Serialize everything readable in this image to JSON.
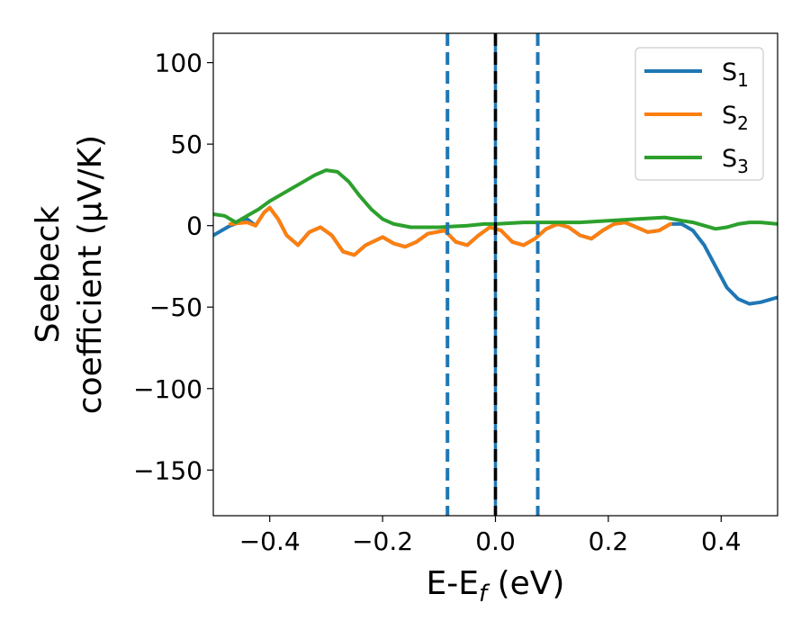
{
  "chart_data": {
    "type": "line",
    "xlabel_main": "E-E",
    "xlabel_sub": "f",
    "xlabel_unit": " (eV)",
    "ylabel_line1": "Seebeck",
    "ylabel_line2": "coefficient  (μV/K)",
    "xlim": [
      -0.5,
      0.5
    ],
    "ylim": [
      -178,
      118
    ],
    "x_ticks": [
      -0.4,
      -0.2,
      0.0,
      0.2,
      0.4
    ],
    "x_tick_labels": [
      "−0.4",
      "−0.2",
      "0.0",
      "0.2",
      "0.4"
    ],
    "y_ticks": [
      100,
      50,
      0,
      -50,
      -100,
      -150
    ],
    "y_tick_labels": [
      "100",
      "50",
      "0",
      "−50",
      "−100",
      "−150"
    ],
    "legend_position": "top-right",
    "vertical_lines": [
      {
        "x": -0.085,
        "style": "dashed",
        "color": "#1f77b4"
      },
      {
        "x": 0.075,
        "style": "dashed",
        "color": "#1f77b4"
      },
      {
        "x": 0.0,
        "style": "solid",
        "color": "#1f77b4"
      },
      {
        "x": 0.0,
        "style": "dashed",
        "color": "#000000"
      }
    ],
    "series": [
      {
        "name_main": "S",
        "name_sub": "1",
        "color": "#1f77b4",
        "points": [
          [
            -0.5,
            -6
          ],
          [
            -0.47,
            0
          ],
          [
            -0.44,
            4
          ],
          [
            -0.425,
            0
          ],
          [
            -0.41,
            8
          ],
          [
            -0.4,
            11
          ],
          [
            -0.385,
            4
          ],
          [
            -0.37,
            -6
          ],
          [
            -0.35,
            -12
          ],
          [
            -0.33,
            -4
          ],
          [
            -0.31,
            -1
          ],
          [
            -0.29,
            -6
          ],
          [
            -0.27,
            -16
          ],
          [
            -0.25,
            -18
          ],
          [
            -0.23,
            -12
          ],
          [
            -0.2,
            -7
          ],
          [
            -0.18,
            -11
          ],
          [
            -0.16,
            -13
          ],
          [
            -0.14,
            -10
          ],
          [
            -0.12,
            -5
          ],
          [
            -0.09,
            -3
          ],
          [
            -0.07,
            -10
          ],
          [
            -0.05,
            -12
          ],
          [
            -0.03,
            -6
          ],
          [
            -0.01,
            -1
          ],
          [
            0.01,
            -3
          ],
          [
            0.03,
            -10
          ],
          [
            0.05,
            -12
          ],
          [
            0.07,
            -8
          ],
          [
            0.09,
            -2
          ],
          [
            0.11,
            1
          ],
          [
            0.13,
            -1
          ],
          [
            0.15,
            -6
          ],
          [
            0.17,
            -8
          ],
          [
            0.19,
            -3
          ],
          [
            0.21,
            1
          ],
          [
            0.23,
            2
          ],
          [
            0.25,
            -1
          ],
          [
            0.27,
            -4
          ],
          [
            0.29,
            -3
          ],
          [
            0.31,
            1
          ],
          [
            0.33,
            1
          ],
          [
            0.35,
            -3
          ],
          [
            0.37,
            -12
          ],
          [
            0.39,
            -25
          ],
          [
            0.41,
            -38
          ],
          [
            0.43,
            -45
          ],
          [
            0.45,
            -48
          ],
          [
            0.47,
            -47
          ],
          [
            0.5,
            -44
          ]
        ]
      },
      {
        "name_main": "S",
        "name_sub": "2",
        "color": "#ff7f0e",
        "points": [
          [
            -0.47,
            1
          ],
          [
            -0.44,
            2
          ],
          [
            -0.425,
            0
          ],
          [
            -0.41,
            8
          ],
          [
            -0.4,
            11
          ],
          [
            -0.385,
            4
          ],
          [
            -0.37,
            -6
          ],
          [
            -0.35,
            -12
          ],
          [
            -0.33,
            -4
          ],
          [
            -0.31,
            -1
          ],
          [
            -0.29,
            -6
          ],
          [
            -0.27,
            -16
          ],
          [
            -0.25,
            -18
          ],
          [
            -0.23,
            -12
          ],
          [
            -0.2,
            -7
          ],
          [
            -0.18,
            -11
          ],
          [
            -0.16,
            -13
          ],
          [
            -0.14,
            -10
          ],
          [
            -0.12,
            -5
          ],
          [
            -0.09,
            -3
          ],
          [
            -0.07,
            -10
          ],
          [
            -0.05,
            -12
          ],
          [
            -0.03,
            -6
          ],
          [
            -0.01,
            -1
          ],
          [
            0.01,
            -3
          ],
          [
            0.03,
            -10
          ],
          [
            0.05,
            -12
          ],
          [
            0.07,
            -8
          ],
          [
            0.09,
            -2
          ],
          [
            0.11,
            1
          ],
          [
            0.13,
            -1
          ],
          [
            0.15,
            -6
          ],
          [
            0.17,
            -8
          ],
          [
            0.19,
            -3
          ],
          [
            0.21,
            1
          ],
          [
            0.23,
            2
          ],
          [
            0.25,
            -1
          ],
          [
            0.27,
            -4
          ],
          [
            0.29,
            -3
          ],
          [
            0.31,
            1
          ]
        ]
      },
      {
        "name_main": "S",
        "name_sub": "3",
        "color": "#2ca02c",
        "points": [
          [
            -0.5,
            7
          ],
          [
            -0.48,
            6
          ],
          [
            -0.46,
            2
          ],
          [
            -0.44,
            6
          ],
          [
            -0.42,
            10
          ],
          [
            -0.4,
            15
          ],
          [
            -0.38,
            19
          ],
          [
            -0.36,
            23
          ],
          [
            -0.34,
            27
          ],
          [
            -0.32,
            31
          ],
          [
            -0.3,
            34
          ],
          [
            -0.28,
            33
          ],
          [
            -0.26,
            27
          ],
          [
            -0.24,
            18
          ],
          [
            -0.22,
            10
          ],
          [
            -0.2,
            4
          ],
          [
            -0.18,
            1
          ],
          [
            -0.15,
            -1
          ],
          [
            -0.1,
            -1
          ],
          [
            -0.05,
            0
          ],
          [
            -0.02,
            1
          ],
          [
            0.0,
            1
          ],
          [
            0.05,
            2
          ],
          [
            0.1,
            2
          ],
          [
            0.15,
            2
          ],
          [
            0.2,
            3
          ],
          [
            0.25,
            4
          ],
          [
            0.3,
            5
          ],
          [
            0.33,
            3
          ],
          [
            0.35,
            2
          ],
          [
            0.37,
            0
          ],
          [
            0.39,
            -2
          ],
          [
            0.41,
            -1
          ],
          [
            0.43,
            1
          ],
          [
            0.45,
            2
          ],
          [
            0.47,
            2
          ],
          [
            0.5,
            1
          ]
        ]
      }
    ]
  }
}
